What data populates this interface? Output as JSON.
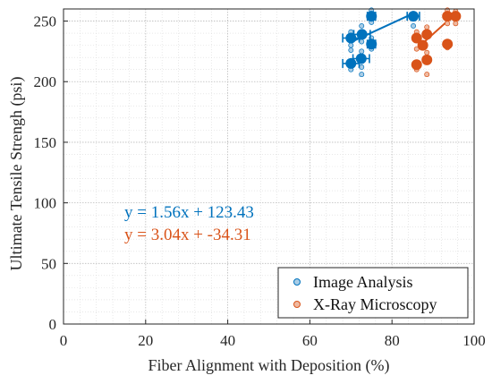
{
  "chart_data": {
    "type": "scatter",
    "title": "",
    "xlabel": "Fiber Alignment with Deposition (%)",
    "ylabel": "Ultimate Tensile Strengh (psi)",
    "xlim": [
      0,
      100
    ],
    "ylim": [
      0,
      260
    ],
    "xticks": [
      "0",
      "20",
      "40",
      "60",
      "80",
      "100"
    ],
    "yticks": [
      "0",
      "50",
      "100",
      "150",
      "200",
      "250"
    ],
    "grid": true,
    "minor_grid": true,
    "legend_position": "bottom-right",
    "colors": {
      "image_analysis": "#0072BD",
      "xray": "#D95319"
    },
    "series": [
      {
        "name": "Image Analysis",
        "color": "#0072BD",
        "means": [
          {
            "x": 70.0,
            "y": 236,
            "xerr": 2.0
          },
          {
            "x": 70.0,
            "y": 215,
            "xerr": 2.0
          },
          {
            "x": 72.7,
            "y": 239,
            "xerr": 2.0
          },
          {
            "x": 72.5,
            "y": 219,
            "xerr": 2.0
          },
          {
            "x": 75.0,
            "y": 254,
            "xerr": 1.0
          },
          {
            "x": 75.0,
            "y": 231,
            "xerr": 1.0
          },
          {
            "x": 85.2,
            "y": 254,
            "xerr": 1.5
          }
        ],
        "samples": [
          {
            "x": 70.0,
            "y": 241
          },
          {
            "x": 70.0,
            "y": 230
          },
          {
            "x": 70.0,
            "y": 226
          },
          {
            "x": 70.0,
            "y": 210
          },
          {
            "x": 72.6,
            "y": 246
          },
          {
            "x": 72.6,
            "y": 233
          },
          {
            "x": 72.6,
            "y": 225
          },
          {
            "x": 72.6,
            "y": 212
          },
          {
            "x": 72.6,
            "y": 206
          },
          {
            "x": 75.0,
            "y": 259
          },
          {
            "x": 75.0,
            "y": 249
          },
          {
            "x": 75.0,
            "y": 236
          },
          {
            "x": 75.0,
            "y": 227
          },
          {
            "x": 85.2,
            "y": 246
          }
        ],
        "fit": {
          "x0": 70,
          "x1": 85.2,
          "equation": "y = 1.56x + 123.43"
        }
      },
      {
        "name": "X-Ray Microscopy",
        "color": "#D95319",
        "means": [
          {
            "x": 86.0,
            "y": 236,
            "xerr": 0
          },
          {
            "x": 86.0,
            "y": 214,
            "xerr": 0
          },
          {
            "x": 87.5,
            "y": 230,
            "xerr": 0
          },
          {
            "x": 88.5,
            "y": 239,
            "xerr": 0
          },
          {
            "x": 88.5,
            "y": 218,
            "xerr": 0
          },
          {
            "x": 93.5,
            "y": 254,
            "xerr": 0
          },
          {
            "x": 93.5,
            "y": 231,
            "xerr": 0
          },
          {
            "x": 95.5,
            "y": 254,
            "xerr": 0
          }
        ],
        "samples": [
          {
            "x": 86.0,
            "y": 241
          },
          {
            "x": 86.0,
            "y": 227
          },
          {
            "x": 86.0,
            "y": 210
          },
          {
            "x": 88.5,
            "y": 245
          },
          {
            "x": 88.5,
            "y": 224
          },
          {
            "x": 88.5,
            "y": 206
          },
          {
            "x": 93.5,
            "y": 259
          },
          {
            "x": 93.5,
            "y": 248
          },
          {
            "x": 93.5,
            "y": 228
          },
          {
            "x": 95.5,
            "y": 258
          },
          {
            "x": 95.5,
            "y": 248
          }
        ],
        "fit": {
          "x0": 86,
          "x1": 95.5,
          "equation": "y = 3.04x + -34.31"
        }
      }
    ]
  }
}
